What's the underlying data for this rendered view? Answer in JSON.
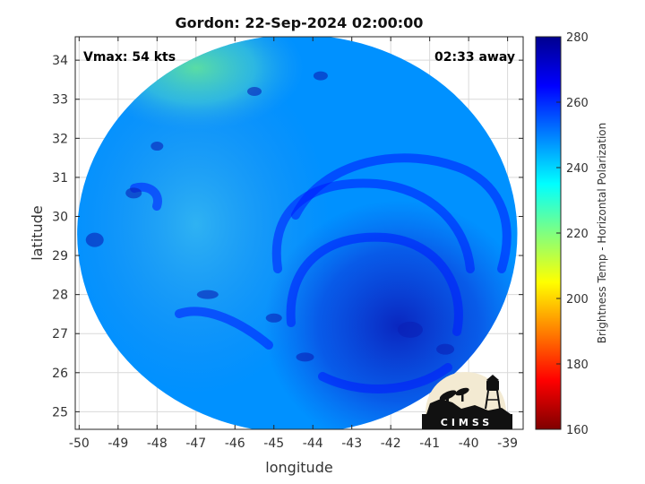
{
  "chart_data": {
    "type": "heatmap",
    "title": "Gordon: 22-Sep-2024 02:00:00",
    "xlabel": "longitude",
    "ylabel": "latitude",
    "xlim": [
      -50.1,
      -38.6
    ],
    "ylim": [
      24.55,
      34.6
    ],
    "x_ticks": [
      -50,
      -49,
      -48,
      -47,
      -46,
      -45,
      -44,
      -43,
      -42,
      -41,
      -40,
      -39
    ],
    "y_ticks": [
      25,
      26,
      27,
      28,
      29,
      30,
      31,
      32,
      33,
      34
    ],
    "grid": true,
    "annotations": {
      "vmax": "Vmax: 54 kts",
      "time_offset": "02:33 away"
    },
    "swath": {
      "center": [
        -44.4,
        29.55
      ],
      "radius_lon": 5.65,
      "radius_lat": 5.1
    },
    "storm_center": [
      -41.8,
      27.2
    ],
    "dominant_values": {
      "background": 248,
      "rainbands": 262,
      "northwest_corner": 232
    },
    "colorbar": {
      "label": "Brightness Temp - Horizontal Polarization",
      "range": [
        160,
        280
      ],
      "ticks": [
        160,
        180,
        200,
        220,
        240,
        260,
        280
      ],
      "colormap": [
        "#7f0000",
        "#ff0000",
        "#ff8000",
        "#ffff00",
        "#80ff80",
        "#00ffff",
        "#0080ff",
        "#0000ff",
        "#00008f"
      ]
    }
  },
  "logo": {
    "text": "CIMSS"
  }
}
